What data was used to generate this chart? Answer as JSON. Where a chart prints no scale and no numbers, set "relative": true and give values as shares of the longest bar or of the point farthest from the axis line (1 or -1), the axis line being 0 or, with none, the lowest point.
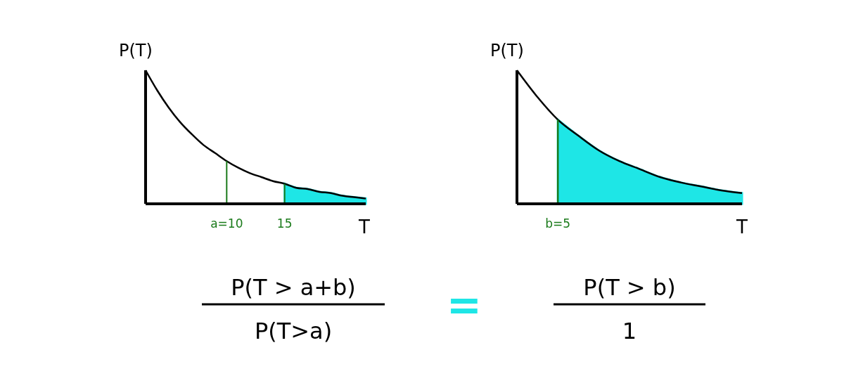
{
  "chart_data": [
    {
      "type": "line",
      "relative": true,
      "ylabel": "P(T)",
      "xlabel": "T",
      "xlim": [
        3,
        22
      ],
      "xticks": [
        {
          "value": 10,
          "label": "a=10"
        },
        15
      ],
      "series": [
        {
          "type": "area",
          "color": "#1ee6e6",
          "x": [
            15,
            16,
            17,
            18,
            19,
            20,
            21,
            22
          ],
          "values": [
            0.15,
            0.12,
            0.11,
            0.09,
            0.08,
            0.06,
            0.05,
            0.04
          ]
        },
        {
          "type": "line",
          "color": "#000000",
          "x": [
            3,
            4,
            5,
            6,
            7,
            8,
            9,
            10,
            11,
            12,
            13,
            14,
            15,
            16,
            17,
            18,
            19,
            20,
            21,
            22
          ],
          "values": [
            1,
            0.85,
            0.72,
            0.61,
            0.52,
            0.44,
            0.38,
            0.32,
            0.27,
            0.23,
            0.2,
            0.17,
            0.15,
            0.12,
            0.11,
            0.09,
            0.08,
            0.06,
            0.05,
            0.04
          ]
        }
      ],
      "ref_lines": [
        {
          "axis": "x",
          "value": 10,
          "color": "#1a7a1a"
        },
        {
          "axis": "x",
          "value": 15,
          "color": "#1a7a1a"
        }
      ]
    },
    {
      "type": "line",
      "relative": true,
      "ylabel": "P(T)",
      "categories": [
        null,
        null,
        "b=5",
        null,
        null,
        null,
        null,
        null,
        null,
        null,
        null,
        "T"
      ],
      "series": [
        {
          "type": "area",
          "color": "#1ee6e6",
          "values": [
            null,
            null,
            0.63,
            0.51,
            0.4,
            0.32,
            0.26,
            0.2,
            0.16,
            0.13,
            0.1,
            0.08
          ]
        },
        {
          "type": "line",
          "color": "#000000",
          "values": [
            1,
            0.8,
            0.63,
            0.51,
            0.4,
            0.32,
            0.26,
            0.2,
            0.16,
            0.13,
            0.1,
            0.08
          ]
        },
        {
          "type": "line",
          "color": "#1a7a1a",
          "x": [
            "b=5",
            "b=5"
          ],
          "values": [
            0,
            0.63
          ]
        }
      ]
    },
    {
      "type": "other",
      "annotations": [
        "P(T > a+b)",
        "P(T>a)",
        "=",
        "P(T > b)",
        "1"
      ]
    }
  ]
}
